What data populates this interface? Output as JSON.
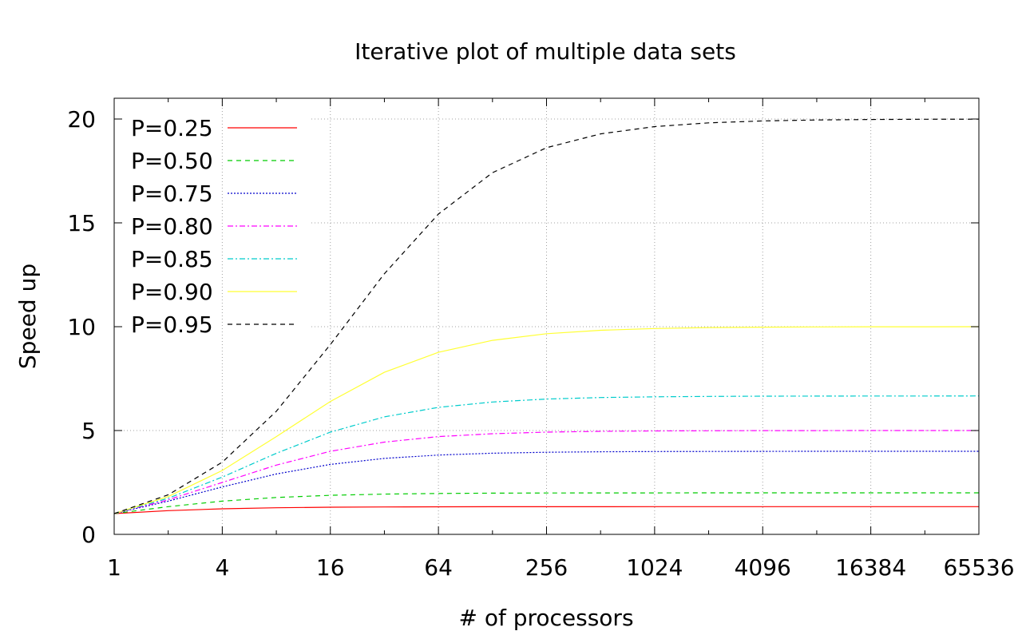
{
  "chart_data": {
    "type": "line",
    "title": "Iterative plot of multiple data sets",
    "xlabel": "# of processors",
    "ylabel": "Speed up",
    "x_scale": "log2",
    "xlim": [
      1,
      65536
    ],
    "ylim": [
      0,
      21
    ],
    "grid": true,
    "legend_position": "top-left",
    "x_ticks": [
      1,
      4,
      16,
      64,
      256,
      1024,
      4096,
      16384,
      65536
    ],
    "x_tick_labels": [
      "1",
      "4",
      "16",
      "64",
      "256",
      "1024",
      "4096",
      "16384",
      "65536"
    ],
    "y_ticks": [
      0,
      5,
      10,
      15,
      20
    ],
    "y_tick_labels": [
      "0",
      "5",
      "10",
      "15",
      "20"
    ],
    "x": [
      1,
      2,
      4,
      8,
      16,
      32,
      64,
      128,
      256,
      512,
      1024,
      2048,
      4096,
      8192,
      16384,
      32768,
      65536
    ],
    "series": [
      {
        "name": "P=0.25",
        "color": "#ff0000",
        "dash": "solid",
        "values": [
          1.0,
          1.143,
          1.231,
          1.28,
          1.306,
          1.319,
          1.326,
          1.33,
          1.331,
          1.332,
          1.333,
          1.333,
          1.333,
          1.333,
          1.333,
          1.333,
          1.333
        ]
      },
      {
        "name": "P=0.50",
        "color": "#00cc00",
        "dash": "dashed",
        "values": [
          1.0,
          1.333,
          1.6,
          1.778,
          1.882,
          1.939,
          1.969,
          1.984,
          1.992,
          1.996,
          1.998,
          1.999,
          2.0,
          2.0,
          2.0,
          2.0,
          2.0
        ]
      },
      {
        "name": "P=0.75",
        "color": "#0000cc",
        "dash": "dotted",
        "values": [
          1.0,
          1.6,
          2.286,
          2.909,
          3.368,
          3.657,
          3.821,
          3.908,
          3.953,
          3.977,
          3.988,
          3.994,
          3.997,
          3.999,
          3.999,
          4.0,
          4.0
        ]
      },
      {
        "name": "P=0.80",
        "color": "#ff00ff",
        "dash": "dashdot",
        "values": [
          1.0,
          1.667,
          2.5,
          3.333,
          4.0,
          4.444,
          4.706,
          4.848,
          4.923,
          4.961,
          4.981,
          4.99,
          4.995,
          4.998,
          4.999,
          4.999,
          5.0
        ]
      },
      {
        "name": "P=0.85",
        "color": "#00cccc",
        "dash": "dashdot",
        "values": [
          1.0,
          1.739,
          2.759,
          3.902,
          4.923,
          5.657,
          6.115,
          6.375,
          6.514,
          6.587,
          6.625,
          6.644,
          6.654,
          6.659,
          6.662,
          6.663,
          6.666
        ]
      },
      {
        "name": "P=0.90",
        "color": "#ffff33",
        "dash": "solid",
        "values": [
          1.0,
          1.818,
          3.077,
          4.706,
          6.4,
          7.805,
          8.767,
          9.343,
          9.66,
          9.827,
          9.913,
          9.956,
          9.978,
          9.989,
          9.995,
          9.997,
          9.999
        ]
      },
      {
        "name": "P=0.95",
        "color": "#000000",
        "dash": "dashed",
        "values": [
          1.0,
          1.905,
          3.478,
          5.926,
          9.143,
          12.549,
          15.422,
          17.415,
          18.618,
          19.284,
          19.634,
          19.815,
          19.907,
          19.953,
          19.977,
          19.988,
          19.994
        ]
      }
    ]
  }
}
